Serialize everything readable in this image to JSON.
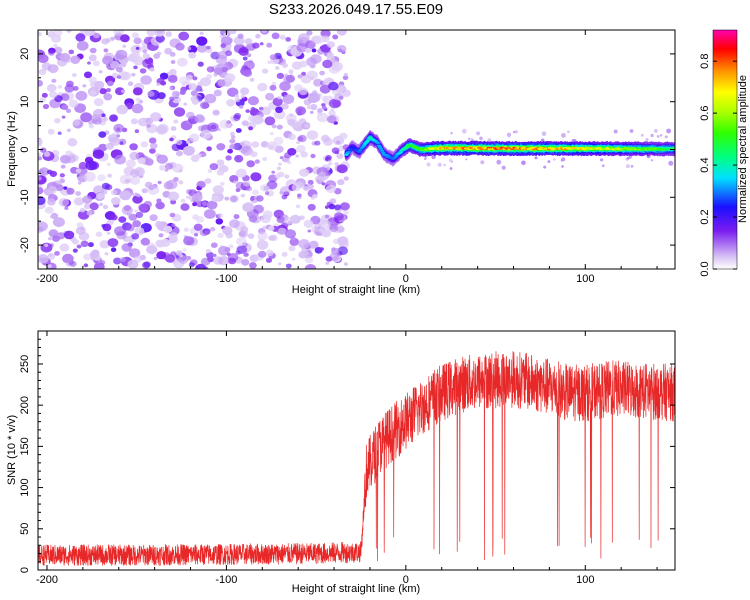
{
  "title": "S233.2026.049.17.55.E09",
  "chart_data": [
    {
      "type": "heatmap",
      "xlabel": "Height of straight line (km)",
      "ylabel": "Frequency (Hz)",
      "xlim": [
        -205,
        150
      ],
      "ylim": [
        -25,
        25
      ],
      "xticks": [
        -200,
        -100,
        0,
        100
      ],
      "yticks": [
        -20,
        -10,
        0,
        10,
        20
      ],
      "noise_region_x": [
        -205,
        -33
      ],
      "signal_track": [
        {
          "x": -33,
          "freq": -1,
          "amp": 0.35
        },
        {
          "x": -30,
          "freq": 0.5,
          "amp": 0.2
        },
        {
          "x": -26,
          "freq": -0.5,
          "amp": 0.25
        },
        {
          "x": -20,
          "freq": 2.5,
          "amp": 0.4
        },
        {
          "x": -16,
          "freq": 1.5,
          "amp": 0.3
        },
        {
          "x": -12,
          "freq": -1,
          "amp": 0.3
        },
        {
          "x": -7,
          "freq": -2,
          "amp": 0.25
        },
        {
          "x": -3,
          "freq": -0.5,
          "amp": 0.35
        },
        {
          "x": 2,
          "freq": 1,
          "amp": 0.5
        },
        {
          "x": 8,
          "freq": 0,
          "amp": 0.55
        },
        {
          "x": 20,
          "freq": 0.3,
          "amp": 0.8
        },
        {
          "x": 60,
          "freq": 0.2,
          "amp": 0.85
        },
        {
          "x": 100,
          "freq": 0.2,
          "amp": 0.75
        },
        {
          "x": 150,
          "freq": 0.1,
          "amp": 0.5
        }
      ]
    },
    {
      "type": "line",
      "xlabel": "Height of straight line (km)",
      "ylabel": "SNR (10 * v/v)",
      "xlim": [
        -205,
        150
      ],
      "ylim": [
        0,
        290
      ],
      "xticks": [
        -200,
        -100,
        0,
        100
      ],
      "yticks": [
        0,
        50,
        100,
        150,
        200,
        250
      ],
      "series": [
        {
          "name": "SNR",
          "color": "#e82828",
          "envelope_x": [
            -205,
            -150,
            -100,
            -50,
            -25,
            -22,
            -15,
            -8,
            0,
            10,
            20,
            30,
            45,
            60,
            75,
            90,
            100,
            115,
            130,
            150
          ],
          "envelope_y": [
            18,
            18,
            19,
            20,
            22,
            120,
            150,
            165,
            180,
            200,
            215,
            225,
            230,
            232,
            225,
            215,
            215,
            220,
            218,
            215
          ]
        }
      ]
    }
  ],
  "colorbar": {
    "label": "Normalized spectral amplitude",
    "ticks": [
      "0.0",
      "0.2",
      "0.4",
      "0.6",
      "0.8"
    ],
    "range": [
      0,
      0.92
    ]
  }
}
